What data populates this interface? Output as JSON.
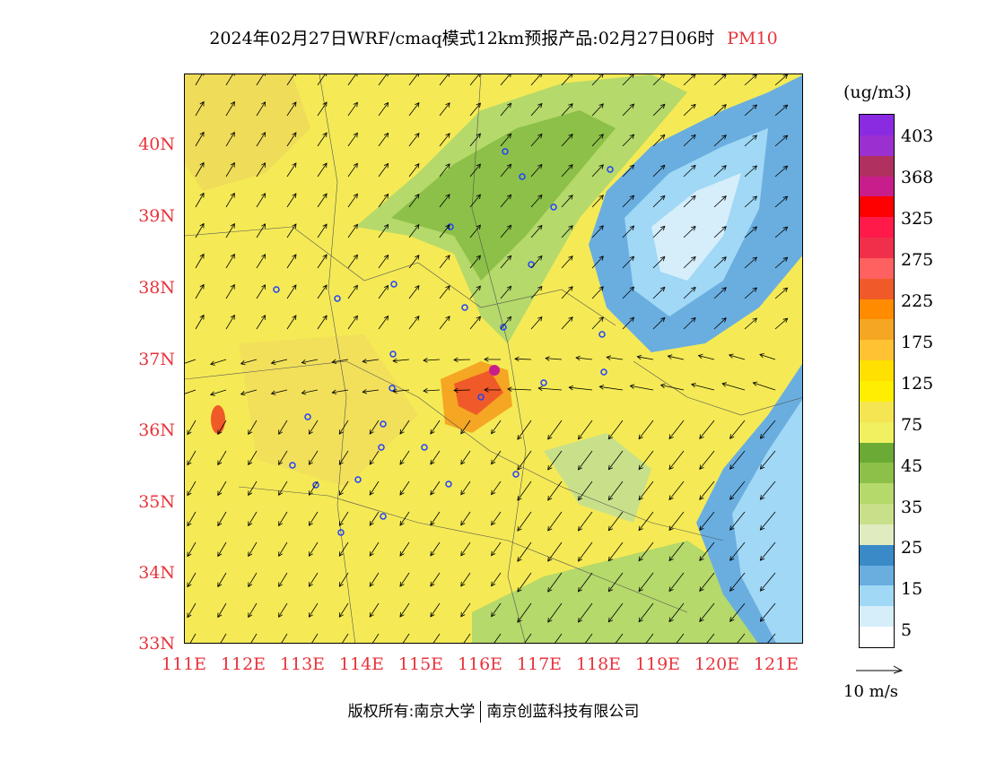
{
  "title": {
    "main": "2024年02月27日WRF/cmaq模式12km预报产品:02月27日06时",
    "species": "PM10"
  },
  "colors": {
    "label_red": "#e8333b",
    "background_yellow": "#f5ea55",
    "sea_blue": "#9fd3f0"
  },
  "axes": {
    "lat_ticks": [
      "40N",
      "39N",
      "38N",
      "37N",
      "36N",
      "35N",
      "34N",
      "33N"
    ],
    "lon_ticks": [
      "111E",
      "112E",
      "113E",
      "114E",
      "115E",
      "116E",
      "117E",
      "118E",
      "119E",
      "120E",
      "121E"
    ]
  },
  "legend": {
    "unit": "(ug/m3)",
    "labels": [
      "403",
      "368",
      "325",
      "275",
      "225",
      "175",
      "125",
      "75",
      "45",
      "35",
      "25",
      "15",
      "5"
    ],
    "bins": [
      {
        "color": "#8a2be2"
      },
      {
        "color": "#9b30d0"
      },
      {
        "color": "#b03060"
      },
      {
        "color": "#c81e8c"
      },
      {
        "color": "#ff0000"
      },
      {
        "color": "#ff1a4a"
      },
      {
        "color": "#f0304a"
      },
      {
        "color": "#ff6060"
      },
      {
        "color": "#f05a28"
      },
      {
        "color": "#ff8c00"
      },
      {
        "color": "#f5a623"
      },
      {
        "color": "#ffc233"
      },
      {
        "color": "#ffe000"
      },
      {
        "color": "#ffee00"
      },
      {
        "color": "#f5e553"
      },
      {
        "color": "#f0f060"
      },
      {
        "color": "#6aaa35"
      },
      {
        "color": "#8cc048"
      },
      {
        "color": "#b5d96a"
      },
      {
        "color": "#c9e08a"
      },
      {
        "color": "#e0ecc0"
      },
      {
        "color": "#3a8ac8"
      },
      {
        "color": "#6aaee0"
      },
      {
        "color": "#a0d8f5"
      },
      {
        "color": "#d6eefa"
      },
      {
        "color": "#ffffff"
      }
    ]
  },
  "wind_reference": "10 m/s",
  "footer": {
    "left": "版权所有:南京大学",
    "right": "南京创蓝科技有限公司"
  }
}
